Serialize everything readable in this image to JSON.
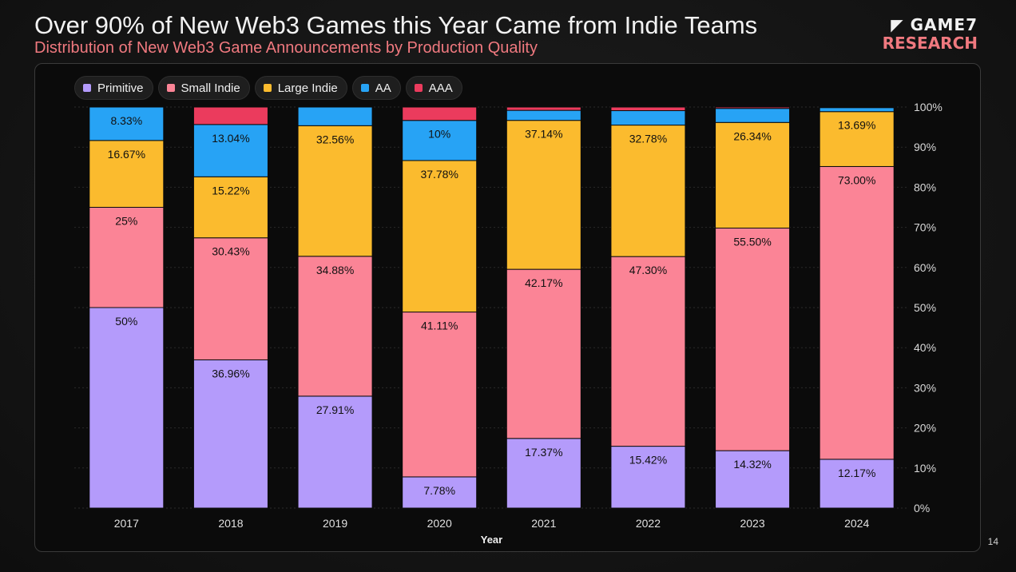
{
  "header": {
    "title": "Over 90% of New Web3 Games this Year Came from Indie Teams",
    "subtitle": "Distribution of New Web3 Game Announcements by Production Quality",
    "logo_line1": "GAME7",
    "logo_line2": "RESEARCH"
  },
  "page_number": "14",
  "chart_data": {
    "type": "bar",
    "stacked": true,
    "title": "Over 90% of New Web3 Games this Year Came from Indie Teams",
    "subtitle": "Distribution of New Web3 Game Announcements by Production Quality",
    "xlabel": "Year",
    "ylabel": "",
    "ylim": [
      0,
      100
    ],
    "yticks": [
      "0%",
      "10%",
      "20%",
      "30%",
      "40%",
      "50%",
      "60%",
      "70%",
      "80%",
      "90%",
      "100%"
    ],
    "categories": [
      "2017",
      "2018",
      "2019",
      "2020",
      "2021",
      "2022",
      "2023",
      "2024"
    ],
    "legend_position": "top-left",
    "series": [
      {
        "name": "Primitive",
        "color": "#b49bfb",
        "values": [
          50,
          36.96,
          27.91,
          7.78,
          17.37,
          15.42,
          14.32,
          12.17
        ],
        "labels": [
          "50%",
          "36.96%",
          "27.91%",
          "7.78%",
          "17.37%",
          "15.42%",
          "14.32%",
          "12.17%"
        ]
      },
      {
        "name": "Small Indie",
        "color": "#fb8496",
        "values": [
          25,
          30.43,
          34.88,
          41.11,
          42.17,
          47.3,
          55.5,
          73.0
        ],
        "labels": [
          "25%",
          "30.43%",
          "34.88%",
          "41.11%",
          "42.17%",
          "47.30%",
          "55.50%",
          "73.00%"
        ]
      },
      {
        "name": "Large Indie",
        "color": "#fbbb2e",
        "values": [
          16.67,
          15.22,
          32.56,
          37.78,
          37.14,
          32.78,
          26.34,
          13.69
        ],
        "labels": [
          "16.67%",
          "15.22%",
          "32.56%",
          "37.78%",
          "37.14%",
          "32.78%",
          "26.34%",
          "13.69%"
        ]
      },
      {
        "name": "AA",
        "color": "#27a3f5",
        "values": [
          8.33,
          13.04,
          4.65,
          10,
          2.5,
          3.6,
          3.5,
          1.0
        ],
        "labels": [
          "8.33%",
          "13.04%",
          "",
          "10%",
          "",
          "",
          "",
          ""
        ]
      },
      {
        "name": "AAA",
        "color": "#eb3b5d",
        "values": [
          0,
          4.35,
          0,
          3.33,
          0.82,
          0.9,
          0.34,
          0.14
        ],
        "labels": [
          "",
          "",
          "",
          "",
          "",
          "",
          "",
          ""
        ]
      }
    ]
  }
}
